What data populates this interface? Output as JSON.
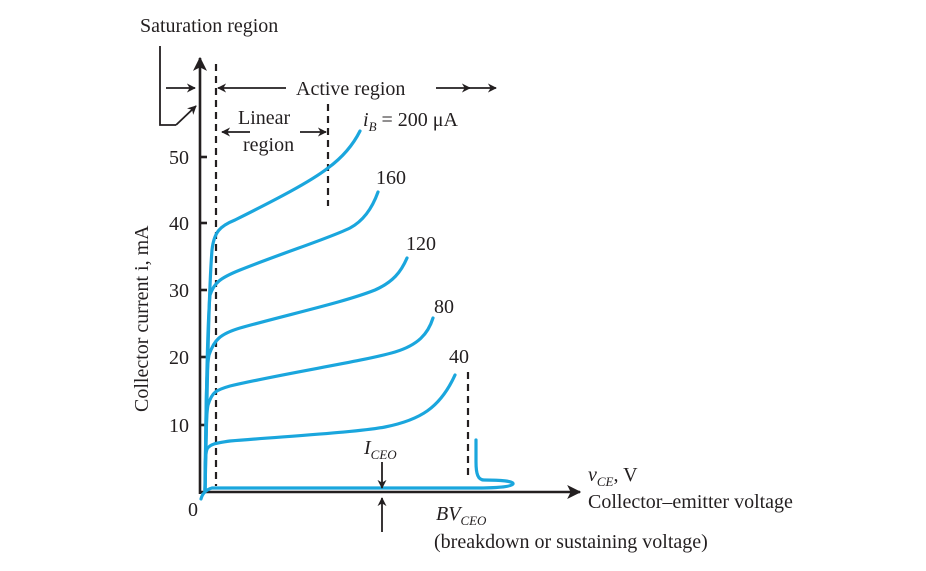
{
  "title": "Saturation region",
  "active_region_label": "Active region",
  "linear_region_label": [
    "Linear",
    "region"
  ],
  "y_axis_label": "Collector current i, mA",
  "x_axis": {
    "main": "v",
    "sub": "CE",
    "unit": ", V",
    "caption": "Collector–emitter voltage"
  },
  "origin_label": "0",
  "y_ticks": [
    "10",
    "20",
    "30",
    "40",
    "50"
  ],
  "iceo_label": {
    "main": "I",
    "sub": "CEO"
  },
  "bvceo_label": {
    "main": "BV",
    "sub": "CEO",
    "note": "(breakdown or sustaining voltage)"
  },
  "curve_labels": {
    "c200": {
      "prefix": "i",
      "sub": "B",
      "value": " = 200 μA"
    },
    "c160": "160",
    "c120": "120",
    "c80": "80",
    "c40": "40"
  },
  "colors": {
    "curve": "#1aa6dd",
    "ink": "#231f20"
  },
  "chart_data": {
    "type": "line",
    "xlabel": "Collector–emitter voltage",
    "ylabel": "Collector current i, mA",
    "y_ticks": [
      10,
      20,
      30,
      40,
      50
    ],
    "series": [
      {
        "name": "200",
        "levels_mA": [
          39,
          49,
          54
        ]
      },
      {
        "name": "160",
        "levels_mA": [
          30,
          39,
          44.5
        ]
      },
      {
        "name": "120",
        "levels_mA": [
          24,
          30,
          35
        ]
      },
      {
        "name": "80",
        "levels_mA": [
          15,
          20,
          25.5
        ]
      },
      {
        "name": "40",
        "levels_mA": [
          7,
          10,
          17.5
        ]
      },
      {
        "name": "ICEO",
        "levels_mA": [
          0.5,
          0.5,
          0.5
        ]
      }
    ]
  }
}
